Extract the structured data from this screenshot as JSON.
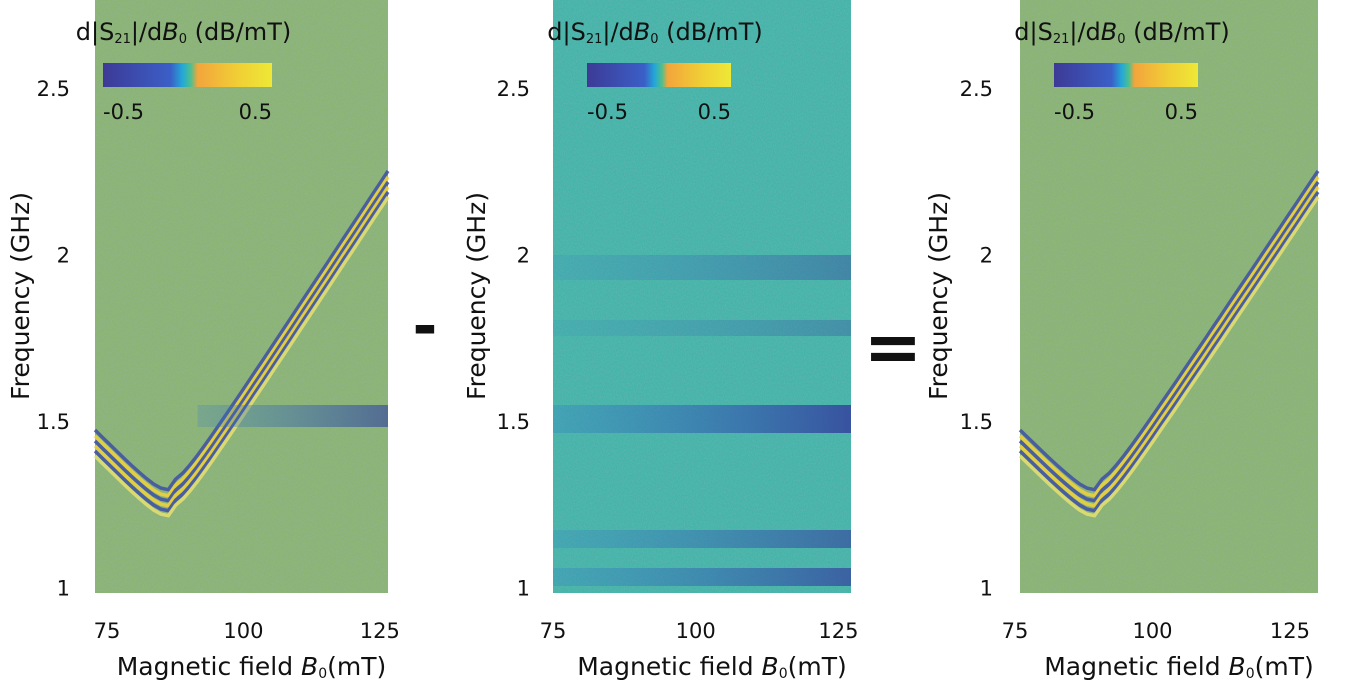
{
  "chart_data": [
    {
      "type": "heatmap",
      "xlabel": [
        "Magnetic field ",
        "B",
        "0",
        "(mT)"
      ],
      "ylabel": "Frequency (GHz)",
      "colorbar_label": [
        "d|S",
        "21",
        "|/d",
        "B",
        "0",
        " (dB/mT)"
      ],
      "xlim": [
        72.8,
        126.5
      ],
      "xticks": [
        75,
        100,
        125
      ],
      "ylim": [
        0.99,
        2.77
      ],
      "yticks": [
        1,
        1.5,
        2,
        2.5
      ],
      "clim": [
        -0.5,
        0.5
      ],
      "cticks": [
        -0.5,
        0.5
      ]
    },
    {
      "type": "heatmap",
      "xlabel": [
        "Magnetic field ",
        "B",
        "0",
        "(mT)"
      ],
      "ylabel": "Frequency (GHz)",
      "colorbar_label": [
        "d|S",
        "21",
        "|/d",
        "B",
        "0",
        " (dB/mT)"
      ],
      "xlim": [
        75,
        127.2
      ],
      "xticks": [
        75,
        100,
        125
      ],
      "ylim": [
        0.99,
        2.77
      ],
      "yticks": [
        1,
        1.5,
        2,
        2.5
      ],
      "clim": [
        -0.5,
        0.5
      ],
      "cticks": [
        -0.5,
        0.5
      ]
    },
    {
      "type": "heatmap",
      "xlabel": [
        "Magnetic field ",
        "B",
        "0",
        "(mT)"
      ],
      "ylabel": "Frequency (GHz)",
      "colorbar_label": [
        "d|S",
        "21",
        "|/d",
        "B",
        "0",
        " (dB/mT)"
      ],
      "xlim": [
        75.9,
        130.1
      ],
      "xticks": [
        75,
        100,
        125
      ],
      "ylim": [
        0.99,
        2.77
      ],
      "yticks": [
        1,
        1.5,
        2,
        2.5
      ],
      "clim": [
        -0.5,
        0.5
      ],
      "cticks": [
        -0.5,
        0.5
      ]
    }
  ],
  "operators": [
    "-",
    "="
  ]
}
